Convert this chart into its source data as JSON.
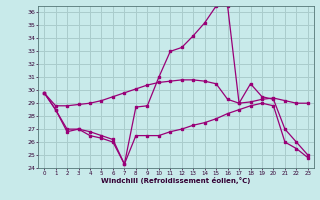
{
  "xlabel": "Windchill (Refroidissement éolien,°C)",
  "ylim": [
    24,
    36.5
  ],
  "xlim": [
    -0.5,
    23.5
  ],
  "yticks": [
    24,
    25,
    26,
    27,
    28,
    29,
    30,
    31,
    32,
    33,
    34,
    35,
    36
  ],
  "xticks": [
    0,
    1,
    2,
    3,
    4,
    5,
    6,
    7,
    8,
    9,
    10,
    11,
    12,
    13,
    14,
    15,
    16,
    17,
    18,
    19,
    20,
    21,
    22,
    23
  ],
  "bg_color": "#c8eaea",
  "line_color": "#990077",
  "grid_color": "#aacccc",
  "curve1_x": [
    0,
    1,
    2,
    3,
    4,
    5,
    6,
    7,
    8,
    9,
    10,
    11,
    12,
    13,
    14,
    15,
    16,
    17,
    18,
    19,
    20,
    21,
    22,
    23
  ],
  "curve1_y": [
    29.8,
    28.8,
    28.8,
    28.9,
    29.0,
    29.2,
    29.5,
    29.8,
    30.1,
    30.4,
    30.6,
    30.7,
    30.8,
    30.8,
    30.7,
    30.5,
    29.3,
    29.0,
    29.1,
    29.3,
    29.4,
    29.2,
    29.0,
    29.0
  ],
  "curve2_x": [
    0,
    1,
    2,
    3,
    4,
    5,
    6,
    7,
    8,
    9,
    10,
    11,
    12,
    13,
    14,
    15,
    16,
    17,
    18,
    19,
    20,
    21,
    22,
    23
  ],
  "curve2_y": [
    29.8,
    28.5,
    27.0,
    27.0,
    26.8,
    26.5,
    26.2,
    24.3,
    28.7,
    28.8,
    31.0,
    33.0,
    33.3,
    34.2,
    35.2,
    36.5,
    36.5,
    29.0,
    30.5,
    29.5,
    29.3,
    27.0,
    26.0,
    25.0
  ],
  "curve3_x": [
    0,
    1,
    2,
    3,
    4,
    5,
    6,
    7,
    8,
    9,
    10,
    11,
    12,
    13,
    14,
    15,
    16,
    17,
    18,
    19,
    20,
    21,
    22,
    23
  ],
  "curve3_y": [
    29.8,
    28.5,
    26.8,
    27.0,
    26.5,
    26.3,
    26.0,
    24.3,
    26.5,
    26.5,
    26.5,
    26.8,
    27.0,
    27.3,
    27.5,
    27.8,
    28.2,
    28.5,
    28.8,
    29.0,
    28.8,
    26.0,
    25.5,
    24.8
  ]
}
